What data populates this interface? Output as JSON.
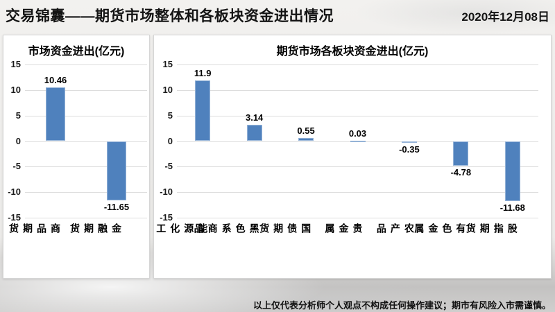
{
  "header": {
    "title": "交易锦囊——期货市场整体和各板块资金进出情况",
    "date": "2020年12月08日"
  },
  "chart_data": [
    {
      "type": "bar",
      "title": "市场资金进出(亿元)",
      "categories": [
        "商品期货",
        "金融期货"
      ],
      "values": [
        10.46,
        -11.65
      ],
      "value_labels": [
        "10.46",
        "-11.65"
      ],
      "ylim": [
        -15,
        15
      ],
      "yticks": [
        15,
        10,
        5,
        0,
        -5,
        -10,
        -15
      ],
      "grid": true,
      "legend": "none",
      "bar_color": "#4F81BD"
    },
    {
      "type": "bar",
      "title": "期货市场各板块资金进出(亿元)",
      "categories": [
        "能源化工",
        "黑色系商品",
        "国债期货",
        "贵金属",
        "农产品",
        "有色金属",
        "股指期货"
      ],
      "values": [
        11.9,
        3.14,
        0.55,
        0.03,
        -0.35,
        -4.78,
        -11.68
      ],
      "value_labels": [
        "11.9",
        "3.14",
        "0.55",
        "0.03",
        "-0.35",
        "-4.78",
        "-11.68"
      ],
      "ylim": [
        -15,
        15
      ],
      "yticks": [
        15,
        10,
        5,
        0,
        -5,
        -10,
        -15
      ],
      "grid": true,
      "legend": "none",
      "bar_color": "#4F81BD"
    }
  ],
  "footer": {
    "disclaimer": "以上仅代表分析师个人观点不构成任何操作建议；期市有风险入市需谨慎。"
  },
  "colors": {
    "bar": "#4F81BD",
    "bar_border": "#95B3D7",
    "gridline": "#DDDDDD",
    "panel_border": "#D6D6D6",
    "text": "#1A1A1A"
  }
}
